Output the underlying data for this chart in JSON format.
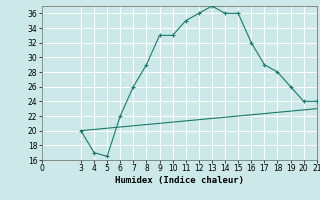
{
  "title": "",
  "xlabel": "Humidex (Indice chaleur)",
  "background_color": "#cce8e8",
  "grid_color": "#ffffff",
  "line_color": "#1a7a6a",
  "xlim": [
    0,
    21
  ],
  "ylim": [
    16,
    37
  ],
  "xticks": [
    0,
    3,
    4,
    5,
    6,
    7,
    8,
    9,
    10,
    11,
    12,
    13,
    14,
    15,
    16,
    17,
    18,
    19,
    20,
    21
  ],
  "yticks": [
    16,
    18,
    20,
    22,
    24,
    26,
    28,
    30,
    32,
    34,
    36
  ],
  "curve1_x": [
    3,
    4,
    5,
    6,
    7,
    8,
    9,
    10,
    11,
    12,
    13,
    14,
    15,
    16,
    17,
    18,
    19,
    20,
    21
  ],
  "curve1_y": [
    20,
    17,
    16.5,
    22,
    26,
    29,
    33,
    33,
    35,
    36,
    37,
    36,
    36,
    32,
    29,
    28,
    26,
    24,
    24
  ],
  "curve2_x": [
    3,
    21
  ],
  "curve2_y": [
    20,
    23
  ]
}
